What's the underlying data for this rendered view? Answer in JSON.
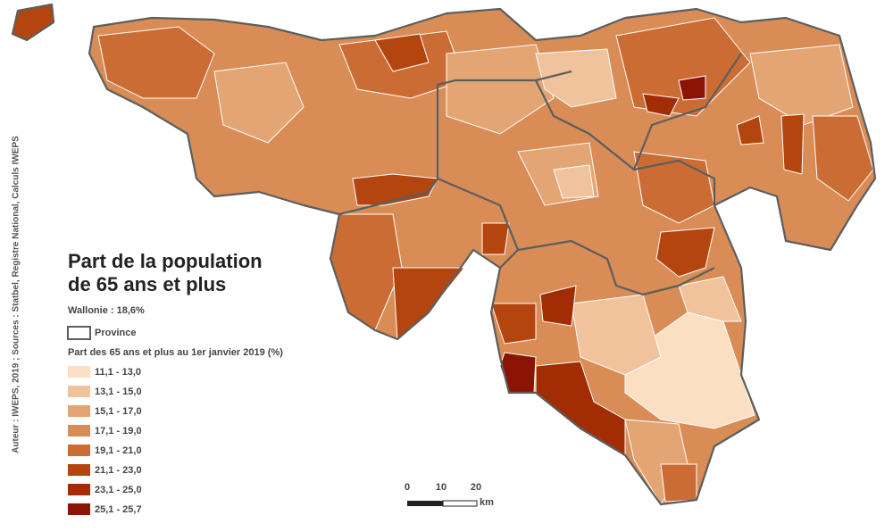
{
  "source": "Auteur : IWEPS, 2019 ; Sources : Statbel, Registre National, Calculs IWEPS",
  "title": [
    "Part de la population",
    "de 65 ans et plus"
  ],
  "subtitle": "Wallonie : 18,6%",
  "legend": {
    "province": "Province",
    "title": "Part des 65 ans et plus au 1er janvier 2019 (%)",
    "classes": [
      {
        "label": "11,1 - 13,0",
        "color": "#fbdfc3"
      },
      {
        "label": "13,1 - 15,0",
        "color": "#f0c39c"
      },
      {
        "label": "15,1 - 17,0",
        "color": "#e3a574"
      },
      {
        "label": "17,1 - 19,0",
        "color": "#d98c56"
      },
      {
        "label": "19,1 - 21,0",
        "color": "#cc6c35"
      },
      {
        "label": "21,1 - 23,0",
        "color": "#b5450f"
      },
      {
        "label": "23,1 - 25,0",
        "color": "#a22d05"
      },
      {
        "label": "25,1 - 25,7",
        "color": "#8b1404"
      }
    ]
  },
  "scale_bar": {
    "ticks": [
      "0",
      "10",
      "20"
    ],
    "unit": "km"
  }
}
